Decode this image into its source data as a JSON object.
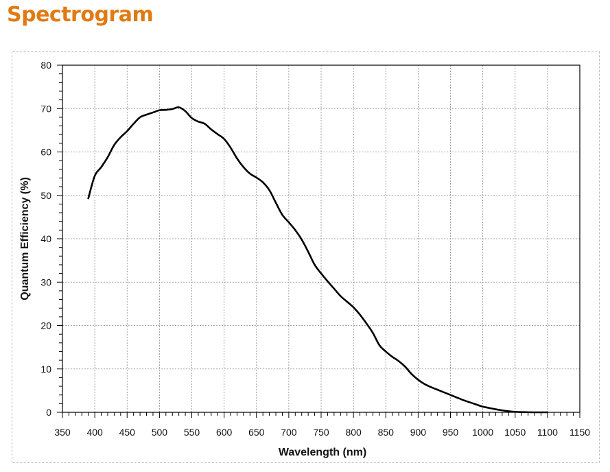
{
  "heading": {
    "text": "Spectrogram",
    "color": "#E07A12"
  },
  "chart_data": {
    "type": "line",
    "title": "",
    "xlabel": "Wavelength (nm)",
    "ylabel": "Quantum Efficiency (%)",
    "xlim": [
      350,
      1150
    ],
    "ylim": [
      0,
      80
    ],
    "xticks": [
      350,
      400,
      450,
      500,
      550,
      600,
      650,
      700,
      750,
      800,
      850,
      900,
      950,
      1000,
      1050,
      1100,
      1150
    ],
    "yticks": [
      0,
      10,
      20,
      30,
      40,
      50,
      60,
      70,
      80
    ],
    "grid": true,
    "line_color": "#000000",
    "series": [
      {
        "x": [
          390,
          400,
          410,
          420,
          430,
          440,
          450,
          460,
          470,
          480,
          490,
          500,
          510,
          520,
          530,
          540,
          550,
          560,
          570,
          580,
          590,
          600,
          610,
          620,
          630,
          640,
          650,
          660,
          670,
          680,
          690,
          700,
          710,
          720,
          730,
          740,
          750,
          760,
          770,
          780,
          790,
          800,
          810,
          820,
          830,
          840,
          850,
          860,
          870,
          880,
          890,
          900,
          910,
          920,
          930,
          940,
          950,
          960,
          970,
          980,
          990,
          1000,
          1010,
          1020,
          1030,
          1040,
          1050,
          1060,
          1070,
          1080,
          1090,
          1100
        ],
        "y": [
          49.3,
          54.5,
          56.5,
          58.8,
          61.6,
          63.4,
          64.8,
          66.5,
          68.0,
          68.6,
          69.1,
          69.6,
          69.7,
          69.9,
          70.3,
          69.4,
          67.8,
          67.0,
          66.5,
          65.2,
          64.1,
          63.0,
          61.0,
          58.5,
          56.5,
          55.0,
          54.1,
          53.0,
          51.2,
          48.3,
          45.5,
          43.8,
          42.0,
          39.8,
          37.0,
          34.0,
          32.0,
          30.2,
          28.5,
          26.8,
          25.5,
          24.2,
          22.5,
          20.5,
          18.3,
          15.5,
          14.0,
          12.8,
          11.8,
          10.5,
          8.8,
          7.5,
          6.5,
          5.8,
          5.2,
          4.6,
          4.0,
          3.4,
          2.8,
          2.3,
          1.8,
          1.3,
          1.0,
          0.7,
          0.45,
          0.25,
          0.12,
          0.05,
          0.02,
          0.0,
          0.0,
          0.0
        ]
      }
    ]
  }
}
